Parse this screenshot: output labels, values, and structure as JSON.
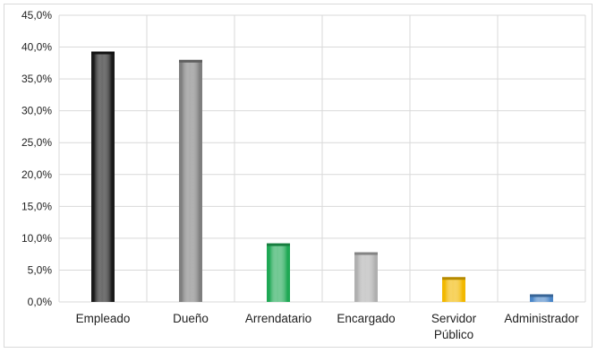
{
  "chart_data": {
    "type": "bar",
    "categories": [
      "Empleado",
      "Dueño",
      "Arrendatario",
      "Encargado",
      "Servidor Público",
      "Administrador"
    ],
    "category_label_lines": [
      [
        "Empleado"
      ],
      [
        "Dueño"
      ],
      [
        "Arrendatario"
      ],
      [
        "Encargado"
      ],
      [
        "Servidor",
        "Público"
      ],
      [
        "Administrador"
      ]
    ],
    "values": [
      39.3,
      38.0,
      9.2,
      7.8,
      3.9,
      1.2
    ],
    "y_tick_labels": [
      "0,0%",
      "5,0%",
      "10,0%",
      "15,0%",
      "20,0%",
      "25,0%",
      "30,0%",
      "35,0%",
      "40,0%",
      "45,0%"
    ],
    "ylim": [
      0,
      45
    ],
    "y_tick_step": 5,
    "title": "",
    "xlabel": "",
    "ylabel": "",
    "grid": true,
    "legend": false,
    "bar_colors": [
      "#1a1a1a",
      "#7f7f7f",
      "#1fa855",
      "#b0b0b0",
      "#f2b800",
      "#4a86c8"
    ],
    "grid_color": "#d9d9d9"
  }
}
